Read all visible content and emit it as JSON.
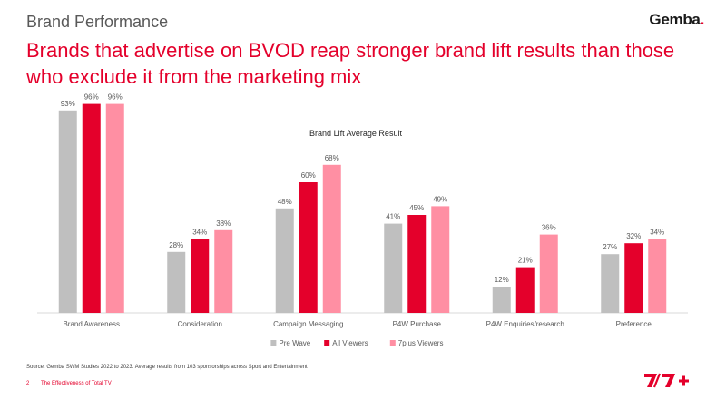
{
  "header": {
    "section_title": "Brand Performance",
    "brand_logo": "Gemba",
    "headline": "Brands that advertise on BVOD reap stronger brand lift results than those who exclude it from the marketing mix"
  },
  "footer": {
    "source": "Source: Gemba SWM Studies 2022 to 2023. Average results from 103 sponsorships across Sport and Entertainment",
    "page_number": "2",
    "deck_title": "The Effectiveness of Total TV",
    "logo_name": "seven-plus-logo"
  },
  "colors": {
    "accent": "#e4002b",
    "pre_wave": "#bfbfbf",
    "all_viewers": "#e4002b",
    "sevenplus_viewers": "#ff8fa3"
  },
  "chart_data": {
    "type": "bar",
    "title": "Brand Lift Average Result",
    "categories": [
      "Brand Awareness",
      "Consideration",
      "Campaign Messaging",
      "P4W Purchase",
      "P4W Enquiries/research",
      "Preference"
    ],
    "series": [
      {
        "name": "Pre Wave",
        "color": "#bfbfbf",
        "values": [
          93,
          28,
          48,
          41,
          12,
          27
        ],
        "labels": [
          "93%",
          "28%",
          "48%",
          "41%",
          "12%",
          "27%"
        ]
      },
      {
        "name": "All Viewers",
        "color": "#e4002b",
        "values": [
          96,
          34,
          60,
          45,
          21,
          32
        ],
        "labels": [
          "96%",
          "34%",
          "60%",
          "45%",
          "21%",
          "32%"
        ]
      },
      {
        "name": "7plus Viewers",
        "color": "#ff8fa3",
        "values": [
          96,
          38,
          68,
          49,
          36,
          34
        ],
        "labels": [
          "96%",
          "38%",
          "68%",
          "49%",
          "36%",
          "34%"
        ]
      }
    ],
    "ylim": [
      0,
      100
    ],
    "grid": false,
    "legend_position": "bottom"
  }
}
